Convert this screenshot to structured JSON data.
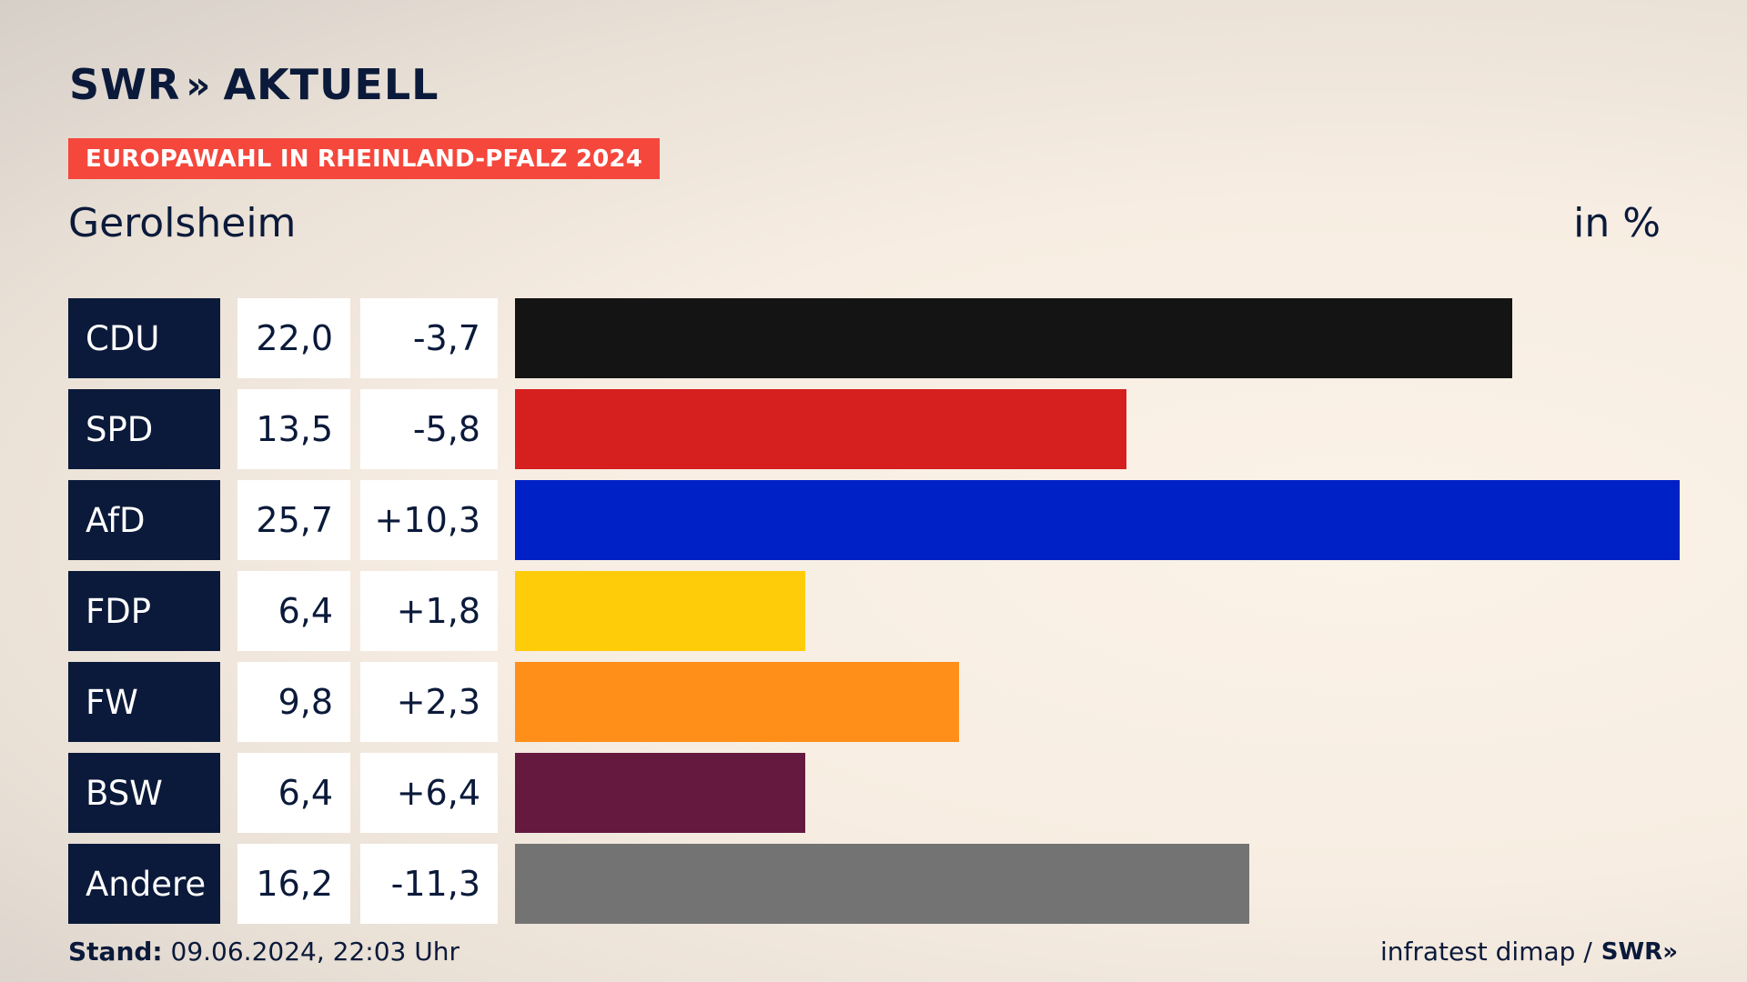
{
  "brand": {
    "logo_text": "SWR",
    "logo_chevrons": "»",
    "logo_suffix": "AKTUELL"
  },
  "banner": "EUROPAWAHL IN RHEINLAND-PFALZ 2024",
  "place": "Gerolsheim",
  "unit": "in %",
  "footer": {
    "stand_label": "Stand:",
    "stand_value": " 09.06.2024, 22:03 Uhr",
    "source": "infratest dimap /",
    "source_logo": "SWR»"
  },
  "chart_data": {
    "type": "bar",
    "orientation": "horizontal",
    "categories": [
      "CDU",
      "SPD",
      "AfD",
      "FDP",
      "FW",
      "BSW",
      "Andere"
    ],
    "values": [
      22.0,
      13.5,
      25.7,
      6.4,
      9.8,
      6.4,
      16.2
    ],
    "value_labels": [
      "22,0",
      "13,5",
      "25,7",
      "6,4",
      "9,8",
      "6,4",
      "16,2"
    ],
    "diff_labels": [
      "-3,7",
      "-5,8",
      "+10,3",
      "+1,8",
      "+2,3",
      "+6,4",
      "-11,3"
    ],
    "colors": [
      "#141414",
      "#d61f1f",
      "#0021c6",
      "#ffcc0a",
      "#ff8f19",
      "#65193f",
      "#737373"
    ],
    "xlim": [
      0,
      25.7
    ]
  }
}
